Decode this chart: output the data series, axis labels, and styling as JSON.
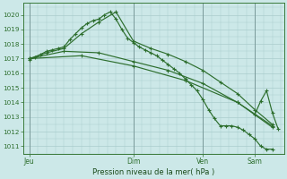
{
  "background_color": "#cce8e8",
  "grid_color": "#aacccc",
  "line_color": "#2d6e2d",
  "ylabel_ticks": [
    1011,
    1012,
    1013,
    1014,
    1015,
    1016,
    1017,
    1018,
    1019,
    1020
  ],
  "ylim": [
    1010.5,
    1020.8
  ],
  "xlabel": "Pression niveau de la mer( hPa )",
  "day_labels": [
    "Jeu",
    "Dim",
    "Ven",
    "Sam"
  ],
  "day_positions": [
    0,
    18,
    30,
    39
  ],
  "xlim": [
    -1,
    44
  ],
  "line1": {
    "x": [
      0,
      1,
      2,
      3,
      4,
      5,
      6,
      7,
      8,
      9,
      10,
      11,
      12,
      13,
      14,
      15,
      16,
      17,
      18,
      19,
      20,
      21,
      22,
      23,
      24,
      25,
      26,
      27,
      28,
      29,
      30,
      31,
      32,
      33,
      34,
      35,
      36,
      37,
      38,
      39,
      40,
      41,
      42
    ],
    "y": [
      1016.9,
      1017.1,
      1017.3,
      1017.5,
      1017.6,
      1017.7,
      1017.8,
      1018.3,
      1018.7,
      1019.1,
      1019.4,
      1019.6,
      1019.7,
      1020.0,
      1020.2,
      1019.7,
      1019.0,
      1018.4,
      1018.1,
      1017.8,
      1017.6,
      1017.4,
      1017.2,
      1016.9,
      1016.6,
      1016.3,
      1016.0,
      1015.6,
      1015.2,
      1014.8,
      1014.2,
      1013.5,
      1012.9,
      1012.4,
      1012.4,
      1012.4,
      1012.3,
      1012.1,
      1011.8,
      1011.5,
      1011.0,
      1010.8,
      1010.8
    ]
  },
  "line2": {
    "x": [
      0,
      3,
      6,
      9,
      12,
      15,
      18,
      21,
      24,
      27,
      30,
      33,
      36,
      39,
      42
    ],
    "y": [
      1017.0,
      1017.4,
      1017.7,
      1018.7,
      1019.5,
      1020.2,
      1018.2,
      1017.7,
      1017.3,
      1016.8,
      1016.2,
      1015.4,
      1014.6,
      1013.5,
      1012.5
    ]
  },
  "line3": {
    "x": [
      0,
      6,
      12,
      18,
      24,
      30,
      36,
      42
    ],
    "y": [
      1017.0,
      1017.5,
      1017.4,
      1016.8,
      1016.2,
      1015.3,
      1014.0,
      1012.4
    ]
  },
  "line4": {
    "x": [
      0,
      9,
      18,
      27,
      36,
      42
    ],
    "y": [
      1017.0,
      1017.2,
      1016.5,
      1015.5,
      1014.0,
      1012.3
    ]
  },
  "line5_sam": {
    "x": [
      39,
      40,
      41,
      42,
      43
    ],
    "y": [
      1013.2,
      1014.1,
      1014.8,
      1013.3,
      1012.2
    ]
  }
}
